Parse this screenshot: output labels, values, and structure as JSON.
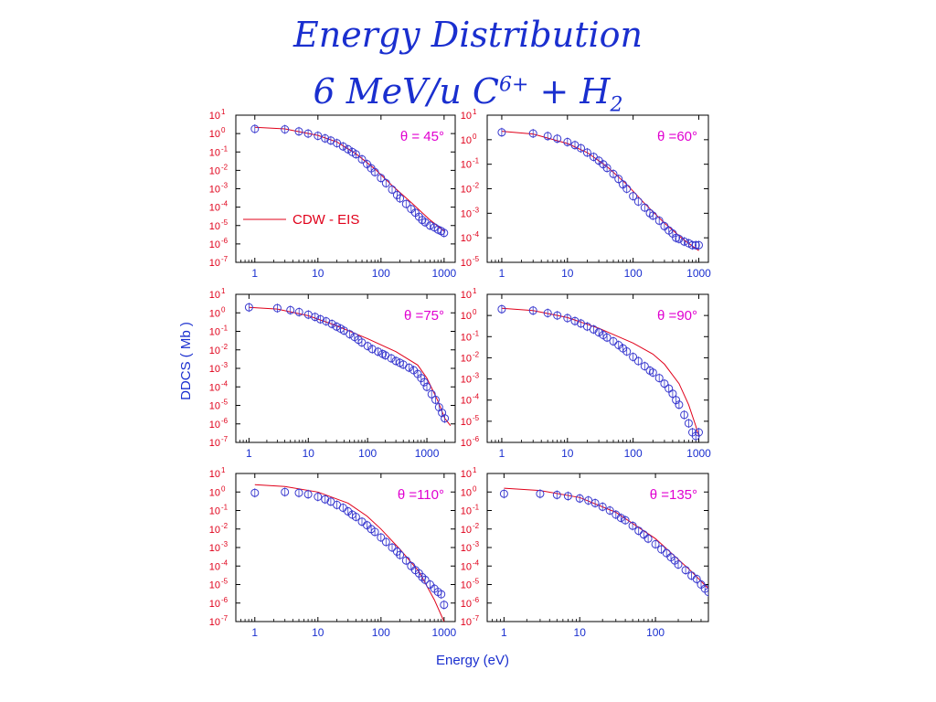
{
  "title": {
    "line1": "Energy Distribution",
    "line2_main": "6 MeV/u C",
    "line2_sup": "6+",
    "line2_mid": " + H",
    "line2_sub": "2"
  },
  "axes": {
    "ylabel": "DDCS ( Mb )",
    "xlabel": "Energy (eV)"
  },
  "legend": {
    "theory_label": "CDW - EIS",
    "theory_color": "#e0001a",
    "experiment_marker": "open-circle",
    "experiment_color": "#3a3acf"
  },
  "colors": {
    "title": "#1a2fcf",
    "ytick": "#e0001a",
    "xtick": "#1a2fcf",
    "angle_label": "#e000d0",
    "theory_line": "#e0001a",
    "data_marker": "#3a3acf"
  },
  "chart_data": [
    {
      "type": "scatter",
      "angle_label": "θ = 45°",
      "xscale": "log",
      "yscale": "log",
      "xlim": [
        0.5,
        1500
      ],
      "ylim_exp": [
        -7,
        1
      ],
      "xticks": [
        1,
        10,
        100,
        1000
      ],
      "legend": "lower-left",
      "series": [
        {
          "name": "CDW - EIS",
          "kind": "line",
          "x": [
            1,
            3,
            10,
            20,
            40,
            80,
            150,
            300,
            600,
            1000
          ],
          "y": [
            2.2,
            1.8,
            0.8,
            0.35,
            0.08,
            0.012,
            0.0015,
            0.00018,
            2e-05,
            5e-06
          ]
        },
        {
          "kind": "scatter",
          "x": [
            1,
            3,
            5,
            7,
            10,
            13,
            16,
            20,
            25,
            30,
            35,
            40,
            50,
            60,
            70,
            80,
            100,
            120,
            150,
            180,
            200,
            250,
            300,
            350,
            400,
            450,
            500,
            600,
            700,
            800,
            900,
            1000
          ],
          "y": [
            1.8,
            1.7,
            1.3,
            1.0,
            0.75,
            0.55,
            0.42,
            0.3,
            0.2,
            0.14,
            0.1,
            0.075,
            0.04,
            0.022,
            0.013,
            0.008,
            0.0038,
            0.002,
            0.0009,
            0.00045,
            0.0003,
            0.00015,
            8e-05,
            5e-05,
            3e-05,
            2e-05,
            1.5e-05,
            1e-05,
            8e-06,
            6e-06,
            5e-06,
            4e-06
          ]
        }
      ]
    },
    {
      "type": "scatter",
      "angle_label": "θ =60°",
      "xscale": "log",
      "yscale": "log",
      "xlim": [
        0.6,
        1400
      ],
      "ylim_exp": [
        -5,
        1
      ],
      "xticks": [
        1,
        10,
        100,
        1000
      ],
      "series": [
        {
          "name": "CDW - EIS",
          "kind": "line",
          "x": [
            1,
            3,
            10,
            20,
            40,
            80,
            150,
            300,
            600,
            1000
          ],
          "y": [
            2.2,
            1.7,
            0.7,
            0.3,
            0.08,
            0.015,
            0.0025,
            0.0004,
            8e-05,
            3e-05
          ]
        },
        {
          "kind": "scatter",
          "x": [
            1,
            3,
            5,
            7,
            10,
            13,
            16,
            20,
            25,
            30,
            35,
            40,
            50,
            60,
            70,
            80,
            100,
            120,
            150,
            180,
            200,
            250,
            300,
            350,
            400,
            450,
            500,
            600,
            700,
            800,
            900,
            1000
          ],
          "y": [
            2.0,
            1.8,
            1.4,
            1.1,
            0.8,
            0.6,
            0.45,
            0.3,
            0.2,
            0.14,
            0.1,
            0.07,
            0.04,
            0.025,
            0.015,
            0.01,
            0.005,
            0.003,
            0.0017,
            0.001,
            0.0008,
            0.0005,
            0.0003,
            0.0002,
            0.00015,
            0.0001,
            9e-05,
            7e-05,
            6e-05,
            5e-05,
            5e-05,
            5e-05
          ]
        }
      ]
    },
    {
      "type": "scatter",
      "angle_label": "θ =75°",
      "xscale": "log",
      "yscale": "log",
      "xlim": [
        0.6,
        3000
      ],
      "ylim_exp": [
        -7,
        1
      ],
      "xticks": [
        1,
        10,
        100,
        1000
      ],
      "series": [
        {
          "name": "CDW - EIS",
          "kind": "line",
          "x": [
            1,
            3,
            10,
            30,
            100,
            300,
            700,
            1000,
            1500,
            2000,
            2500
          ],
          "y": [
            2.0,
            1.6,
            0.7,
            0.2,
            0.04,
            0.008,
            0.0015,
            0.0003,
            2e-05,
            2e-06,
            8e-07
          ]
        },
        {
          "kind": "scatter",
          "x": [
            1,
            3,
            5,
            7,
            10,
            13,
            16,
            20,
            25,
            30,
            35,
            40,
            50,
            60,
            70,
            80,
            100,
            120,
            150,
            180,
            200,
            250,
            300,
            350,
            400,
            500,
            600,
            700,
            800,
            900,
            1000,
            1200,
            1400,
            1600,
            1800,
            2000
          ],
          "y": [
            2.0,
            1.8,
            1.4,
            1.1,
            0.8,
            0.6,
            0.45,
            0.35,
            0.25,
            0.18,
            0.14,
            0.11,
            0.07,
            0.05,
            0.035,
            0.025,
            0.016,
            0.011,
            0.008,
            0.006,
            0.005,
            0.0035,
            0.0025,
            0.002,
            0.0016,
            0.0011,
            0.0008,
            0.0005,
            0.0003,
            0.00018,
            0.0001,
            4e-05,
            2e-05,
            8e-06,
            4e-06,
            2e-06
          ]
        }
      ]
    },
    {
      "type": "scatter",
      "angle_label": "θ =90°",
      "xscale": "log",
      "yscale": "log",
      "xlim": [
        0.6,
        1400
      ],
      "ylim_exp": [
        -6,
        1
      ],
      "xticks": [
        1,
        10,
        100,
        1000
      ],
      "series": [
        {
          "name": "CDW - EIS",
          "kind": "line",
          "x": [
            1,
            3,
            10,
            30,
            100,
            200,
            300,
            500,
            700,
            900,
            1000
          ],
          "y": [
            2.2,
            1.7,
            0.8,
            0.25,
            0.05,
            0.015,
            0.005,
            0.0006,
            6e-05,
            6e-06,
            2e-06
          ]
        },
        {
          "kind": "scatter",
          "x": [
            1,
            3,
            5,
            7,
            10,
            13,
            16,
            20,
            25,
            30,
            35,
            40,
            50,
            60,
            70,
            80,
            100,
            120,
            150,
            180,
            200,
            250,
            300,
            350,
            400,
            450,
            500,
            600,
            700,
            800,
            900,
            1000
          ],
          "y": [
            2.0,
            1.7,
            1.3,
            1.0,
            0.75,
            0.55,
            0.42,
            0.3,
            0.22,
            0.16,
            0.12,
            0.09,
            0.06,
            0.04,
            0.028,
            0.02,
            0.011,
            0.007,
            0.004,
            0.0025,
            0.002,
            0.0011,
            0.0006,
            0.00035,
            0.0002,
            0.0001,
            6e-05,
            2e-05,
            8e-06,
            3e-06,
            2e-06,
            3e-06
          ]
        }
      ]
    },
    {
      "type": "scatter",
      "angle_label": "θ =110°",
      "xscale": "log",
      "yscale": "log",
      "xlim": [
        0.5,
        1500
      ],
      "ylim_exp": [
        -7,
        1
      ],
      "xticks": [
        1,
        10,
        100,
        1000
      ],
      "series": [
        {
          "name": "CDW - EIS",
          "kind": "line",
          "x": [
            1,
            3,
            10,
            30,
            60,
            100,
            200,
            400,
            700,
            1000
          ],
          "y": [
            2.5,
            2.0,
            1.0,
            0.25,
            0.05,
            0.01,
            0.0008,
            5e-05,
            1.5e-06,
            1e-07
          ]
        },
        {
          "kind": "scatter",
          "x": [
            1,
            3,
            5,
            7,
            10,
            13,
            16,
            20,
            25,
            30,
            35,
            40,
            50,
            60,
            70,
            80,
            100,
            120,
            150,
            180,
            200,
            250,
            300,
            350,
            400,
            450,
            500,
            600,
            700,
            800,
            900,
            1000
          ],
          "y": [
            0.9,
            1.0,
            0.9,
            0.75,
            0.55,
            0.4,
            0.3,
            0.2,
            0.14,
            0.09,
            0.06,
            0.045,
            0.025,
            0.016,
            0.01,
            0.007,
            0.0035,
            0.002,
            0.001,
            0.0006,
            0.0004,
            0.0002,
            0.0001,
            6e-05,
            4e-05,
            2.5e-05,
            1.8e-05,
            1e-05,
            6e-06,
            4e-06,
            3e-06,
            8e-07
          ]
        }
      ]
    },
    {
      "type": "scatter",
      "angle_label": "θ =135°",
      "xscale": "log",
      "yscale": "log",
      "xlim": [
        0.6,
        500
      ],
      "ylim_exp": [
        -7,
        1
      ],
      "xticks": [
        1,
        10,
        100
      ],
      "series": [
        {
          "name": "CDW - EIS",
          "kind": "line",
          "x": [
            1,
            3,
            10,
            30,
            100,
            300,
            500
          ],
          "y": [
            1.6,
            1.2,
            0.5,
            0.08,
            0.003,
            5e-05,
            6e-06
          ]
        },
        {
          "kind": "scatter",
          "x": [
            1,
            3,
            5,
            7,
            10,
            13,
            16,
            20,
            25,
            30,
            35,
            40,
            50,
            60,
            70,
            80,
            100,
            120,
            140,
            160,
            180,
            200,
            250,
            300,
            350,
            400,
            450,
            500
          ],
          "y": [
            0.8,
            0.8,
            0.7,
            0.6,
            0.45,
            0.35,
            0.25,
            0.16,
            0.1,
            0.06,
            0.04,
            0.03,
            0.015,
            0.008,
            0.005,
            0.003,
            0.0015,
            0.0008,
            0.0005,
            0.0003,
            0.0002,
            0.00012,
            6e-05,
            3e-05,
            2e-05,
            1e-05,
            6e-06,
            4e-06
          ]
        }
      ]
    }
  ]
}
